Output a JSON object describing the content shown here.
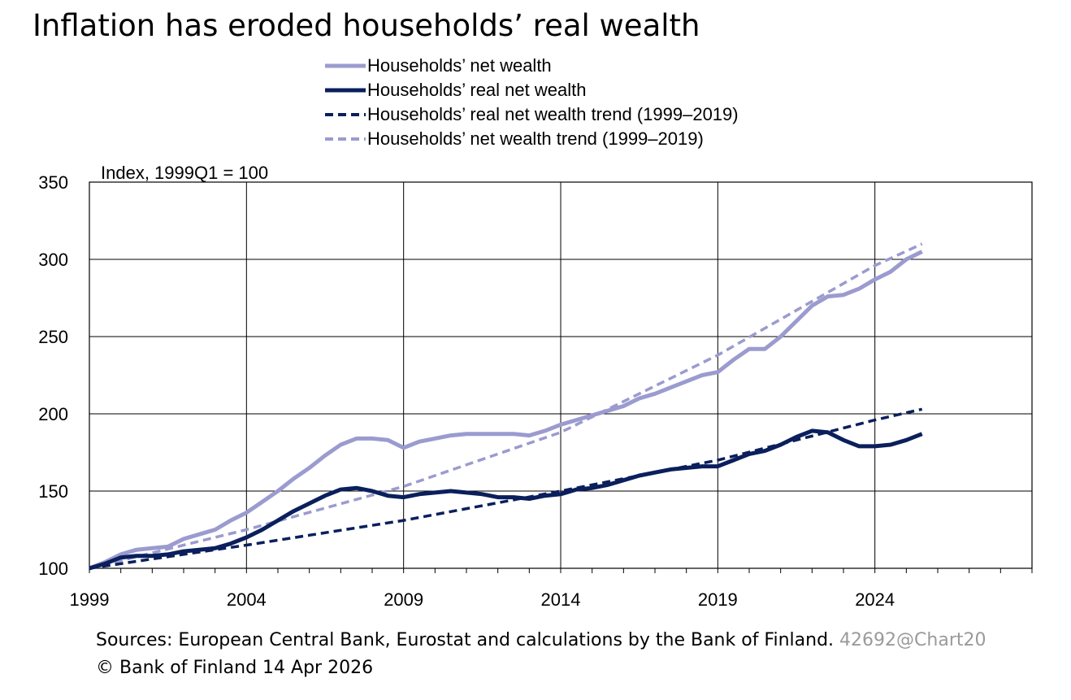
{
  "title": "Inflation has eroded households’ real wealth",
  "footer": {
    "sources": "Sources: European Central Bank, Eurostat and calculations by the Bank of Finland.",
    "chart_id": "42692@Chart20",
    "copyright": "© Bank of Finland 14 Apr 2026"
  },
  "colors": {
    "light": "#9b9bd0",
    "dark": "#0a1f5c"
  },
  "chart_data": {
    "type": "line",
    "title": "Inflation has eroded households’ real wealth",
    "ylabel": "Index, 1999Q1 = 100",
    "xlabel": "",
    "ylim": [
      100,
      350
    ],
    "yticks": [
      100,
      150,
      200,
      250,
      300,
      350
    ],
    "xlim": [
      1999,
      2029
    ],
    "xticks": [
      1999,
      2004,
      2009,
      2014,
      2019,
      2024
    ],
    "grid": true,
    "legend_position": "top",
    "series": [
      {
        "name": "Households’ net wealth",
        "style": "solid",
        "color": "#9b9bd0",
        "x": [
          1999,
          1999.5,
          2000,
          2000.5,
          2001,
          2001.5,
          2002,
          2002.5,
          2003,
          2003.5,
          2004,
          2004.5,
          2005,
          2005.5,
          2006,
          2006.5,
          2007,
          2007.5,
          2008,
          2008.5,
          2009,
          2009.5,
          2010,
          2010.5,
          2011,
          2011.5,
          2012,
          2012.5,
          2013,
          2013.5,
          2014,
          2014.5,
          2015,
          2015.5,
          2016,
          2016.5,
          2017,
          2017.5,
          2018,
          2018.5,
          2019,
          2019.5,
          2020,
          2020.5,
          2021,
          2021.5,
          2022,
          2022.5,
          2023,
          2023.5,
          2024,
          2024.5,
          2025,
          2025.5
        ],
        "y": [
          100,
          104,
          109,
          112,
          113,
          114,
          119,
          122,
          125,
          131,
          136,
          143,
          150,
          158,
          165,
          173,
          180,
          184,
          184,
          183,
          178,
          182,
          184,
          186,
          187,
          187,
          187,
          187,
          186,
          189,
          193,
          196,
          199,
          202,
          205,
          210,
          213,
          217,
          221,
          225,
          227,
          235,
          242,
          242,
          250,
          260,
          270,
          276,
          277,
          281,
          287,
          292,
          300,
          305
        ]
      },
      {
        "name": "Households’ real net wealth",
        "style": "solid",
        "color": "#0a1f5c",
        "x": [
          1999,
          1999.5,
          2000,
          2000.5,
          2001,
          2001.5,
          2002,
          2002.5,
          2003,
          2003.5,
          2004,
          2004.5,
          2005,
          2005.5,
          2006,
          2006.5,
          2007,
          2007.5,
          2008,
          2008.5,
          2009,
          2009.5,
          2010,
          2010.5,
          2011,
          2011.5,
          2012,
          2012.5,
          2013,
          2013.5,
          2014,
          2014.5,
          2015,
          2015.5,
          2016,
          2016.5,
          2017,
          2017.5,
          2018,
          2018.5,
          2019,
          2019.5,
          2020,
          2020.5,
          2021,
          2021.5,
          2022,
          2022.5,
          2023,
          2023.5,
          2024,
          2024.5,
          2025,
          2025.5
        ],
        "y": [
          100,
          103,
          107,
          108,
          108,
          109,
          111,
          112,
          113,
          116,
          120,
          125,
          131,
          137,
          142,
          147,
          151,
          152,
          150,
          147,
          146,
          148,
          149,
          150,
          149,
          148,
          146,
          146,
          145,
          147,
          148,
          151,
          152,
          154,
          157,
          160,
          162,
          164,
          165,
          166,
          166,
          170,
          174,
          176,
          180,
          185,
          189,
          188,
          183,
          179,
          179,
          180,
          183,
          187
        ]
      },
      {
        "name": "Households’ real net wealth trend (1999–2019)",
        "style": "dashed",
        "color": "#0a1f5c",
        "x": [
          1999,
          2004,
          2009,
          2014,
          2019,
          2024,
          2025.5
        ],
        "y": [
          100,
          115,
          131,
          150,
          170,
          196,
          203
        ]
      },
      {
        "name": "Households’ net wealth trend (1999–2019)",
        "style": "dashed",
        "color": "#9b9bd0",
        "x": [
          1999,
          2004,
          2009,
          2014,
          2019,
          2024,
          2025.5
        ],
        "y": [
          100,
          125,
          153,
          188,
          238,
          296,
          310
        ]
      }
    ]
  }
}
